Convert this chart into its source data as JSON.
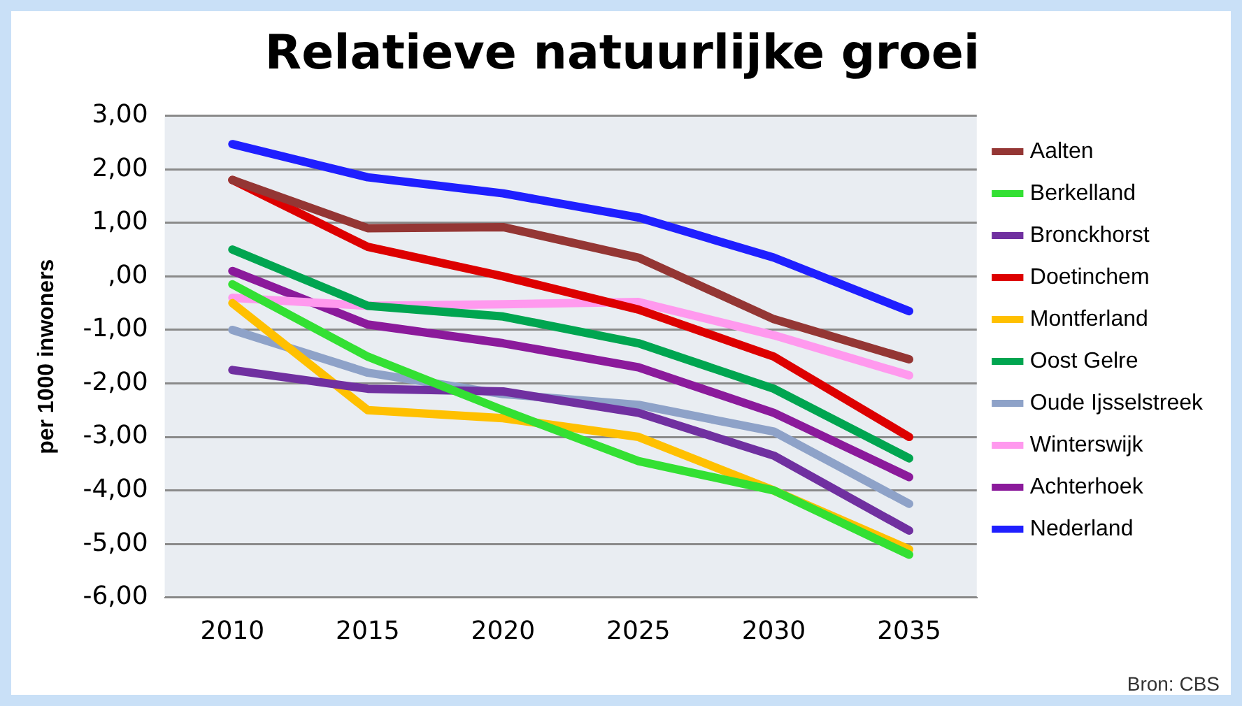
{
  "chart_data": {
    "type": "line",
    "title": "Relatieve natuurlijke groei",
    "ylabel": "per 1000 inwoners",
    "categories": [
      "2010",
      "2015",
      "2020",
      "2025",
      "2030",
      "2035"
    ],
    "ylim": [
      -6,
      3
    ],
    "yticks": [
      {
        "value": 3,
        "label": "3,00"
      },
      {
        "value": 2,
        "label": "2,00"
      },
      {
        "value": 1,
        "label": "1,00"
      },
      {
        "value": 0,
        "label": ",00"
      },
      {
        "value": -1,
        "label": "-1,00"
      },
      {
        "value": -2,
        "label": "-2,00"
      },
      {
        "value": -3,
        "label": "-3,00"
      },
      {
        "value": -4,
        "label": "-4,00"
      },
      {
        "value": -5,
        "label": "-5,00"
      },
      {
        "value": -6,
        "label": "-6,00"
      }
    ],
    "grid": "y",
    "legend": "right",
    "marker": "none",
    "line_style": "solid",
    "annotations": [
      "Bron: CBS"
    ],
    "series": [
      {
        "name": "Aalten",
        "color": "#943634",
        "values": [
          1.8,
          0.9,
          0.92,
          0.35,
          -0.8,
          -1.55
        ]
      },
      {
        "name": "Berkelland",
        "color": "#33e033",
        "values": [
          -0.15,
          -1.5,
          -2.5,
          -3.45,
          -4.0,
          -5.2
        ]
      },
      {
        "name": "Bronckhorst",
        "color": "#7030a0",
        "values": [
          -1.75,
          -2.1,
          -2.15,
          -2.55,
          -3.35,
          -4.75
        ]
      },
      {
        "name": "Doetinchem",
        "color": "#dd0000",
        "values": [
          1.8,
          0.55,
          0.0,
          -0.62,
          -1.5,
          -3.0
        ]
      },
      {
        "name": "Montferland",
        "color": "#ffc000",
        "values": [
          -0.5,
          -2.5,
          -2.65,
          -3.0,
          -4.0,
          -5.1
        ]
      },
      {
        "name": "Oost Gelre",
        "color": "#00a550",
        "values": [
          0.5,
          -0.55,
          -0.75,
          -1.25,
          -2.1,
          -3.4
        ]
      },
      {
        "name": "Oude Ijsselstreek",
        "color": "#8ea2c8",
        "values": [
          -1.0,
          -1.8,
          -2.2,
          -2.4,
          -2.9,
          -4.25
        ]
      },
      {
        "name": "Winterswijk",
        "color": "#ff99ee",
        "values": [
          -0.4,
          -0.55,
          -0.52,
          -0.48,
          -1.1,
          -1.85
        ]
      },
      {
        "name": "Achterhoek",
        "color": "#8b1a9b",
        "values": [
          0.1,
          -0.9,
          -1.25,
          -1.7,
          -2.55,
          -3.75
        ]
      },
      {
        "name": "Nederland",
        "color": "#1f1fff",
        "values": [
          2.47,
          1.85,
          1.55,
          1.1,
          0.35,
          -0.65
        ]
      }
    ]
  }
}
